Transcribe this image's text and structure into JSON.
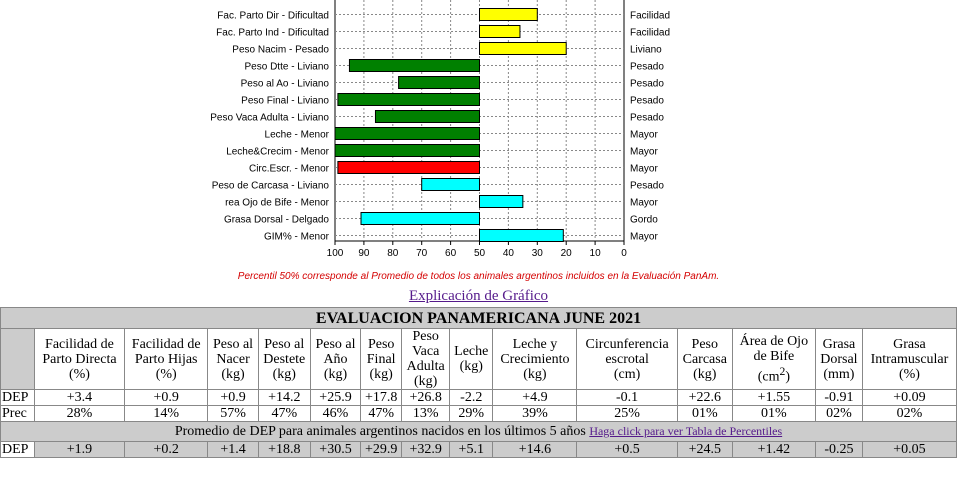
{
  "chart_data": {
    "type": "bar",
    "orientation": "horizontal",
    "x_reversed": true,
    "xlim": [
      0,
      100
    ],
    "xticks": [
      "100",
      "90",
      "80",
      "70",
      "60",
      "50",
      "40",
      "30",
      "20",
      "10",
      "0"
    ],
    "grid": true,
    "rows": [
      {
        "label": "Fac. Parto Dir - Dificultad",
        "right": "Facilidad",
        "value": 30,
        "color": "#ffff00"
      },
      {
        "label": "Fac. Parto Ind - Dificultad",
        "right": "Facilidad",
        "value": 36,
        "color": "#ffff00"
      },
      {
        "label": "Peso Nacim - Pesado",
        "right": "Liviano",
        "value": 20,
        "color": "#ffff00"
      },
      {
        "label": "Peso Dtte - Liviano",
        "right": "Pesado",
        "value": 95,
        "color": "#008000"
      },
      {
        "label": "Peso al Ao - Liviano",
        "right": "Pesado",
        "value": 78,
        "color": "#008000"
      },
      {
        "label": "Peso Final - Liviano",
        "right": "Pesado",
        "value": 99,
        "color": "#008000"
      },
      {
        "label": "Peso Vaca Adulta - Liviano",
        "right": "Pesado",
        "value": 86,
        "color": "#008000"
      },
      {
        "label": "Leche - Menor",
        "right": "Mayor",
        "value": 100,
        "color": "#008000"
      },
      {
        "label": "Leche&Crecim - Menor",
        "right": "Mayor",
        "value": 100,
        "color": "#008000"
      },
      {
        "label": "Circ.Escr. - Menor",
        "right": "Mayor",
        "value": 99,
        "color": "#ff0000"
      },
      {
        "label": "Peso de Carcasa - Liviano",
        "right": "Pesado",
        "value": 70,
        "color": "#00ffff"
      },
      {
        "label": "rea Ojo de Bife - Menor",
        "right": "Mayor",
        "value": 35,
        "color": "#00ffff"
      },
      {
        "label": "Grasa Dorsal - Delgado",
        "right": "Gordo",
        "value": 91,
        "color": "#00ffff"
      },
      {
        "label": "GIM% - Menor",
        "right": "Mayor",
        "value": 21,
        "color": "#00ffff"
      }
    ]
  },
  "note": "Percentil 50% corresponde al Promedio de todos los animales argentinos incluidos en la Evaluación PanAm.",
  "explicacion_link": "Explicación de Gráfico",
  "table": {
    "title": "EVALUACION PANAMERICANA JUNE 2021",
    "headers": [
      [
        "Facilidad de",
        "Parto Directa",
        "(%)"
      ],
      [
        "Facilidad de",
        "Parto Hijas",
        "(%)"
      ],
      [
        "Peso al",
        "Nacer",
        "(kg)"
      ],
      [
        "Peso al",
        "Destete",
        "(kg)"
      ],
      [
        "Peso al",
        "Año",
        "(kg)"
      ],
      [
        "Peso",
        "Final",
        "(kg)"
      ],
      [
        "Peso",
        "Vaca",
        "Adulta",
        "(kg)"
      ],
      [
        "Leche",
        "(kg)"
      ],
      [
        "Leche y",
        "Crecimiento",
        "(kg)"
      ],
      [
        "Circunferencia",
        "escrotal",
        "(cm)"
      ],
      [
        "Peso",
        "Carcasa",
        "(kg)"
      ],
      [
        "Área de Ojo",
        "de Bife",
        "(cm²)"
      ],
      [
        "Grasa",
        "Dorsal",
        "(mm)"
      ],
      [
        "Grasa",
        "Intramuscular",
        "(%)"
      ]
    ],
    "dep_label": "DEP",
    "dep": [
      "+3.4",
      "+0.9",
      "+0.9",
      "+14.2",
      "+25.9",
      "+17.8",
      "+26.8",
      "-2.2",
      "+4.9",
      "-0.1",
      "+22.6",
      "+1.55",
      "-0.91",
      "+0.09"
    ],
    "prec_label": "Prec",
    "prec": [
      "28%",
      "14%",
      "57%",
      "47%",
      "46%",
      "47%",
      "13%",
      "29%",
      "39%",
      "25%",
      "01%",
      "01%",
      "02%",
      "02%"
    ],
    "promedio_text": "Promedio de DEP para animales argentinos nacidos en los últimos 5 años",
    "promedio_link": "Haga click para ver Tabla de Percentiles",
    "prom_label": "DEP",
    "prom": [
      "+1.9",
      "+0.2",
      "+1.4",
      "+18.8",
      "+30.5",
      "+29.9",
      "+32.9",
      "+5.1",
      "+14.6",
      "+0.5",
      "+24.5",
      "+1.42",
      "-0.25",
      "+0.05"
    ]
  }
}
